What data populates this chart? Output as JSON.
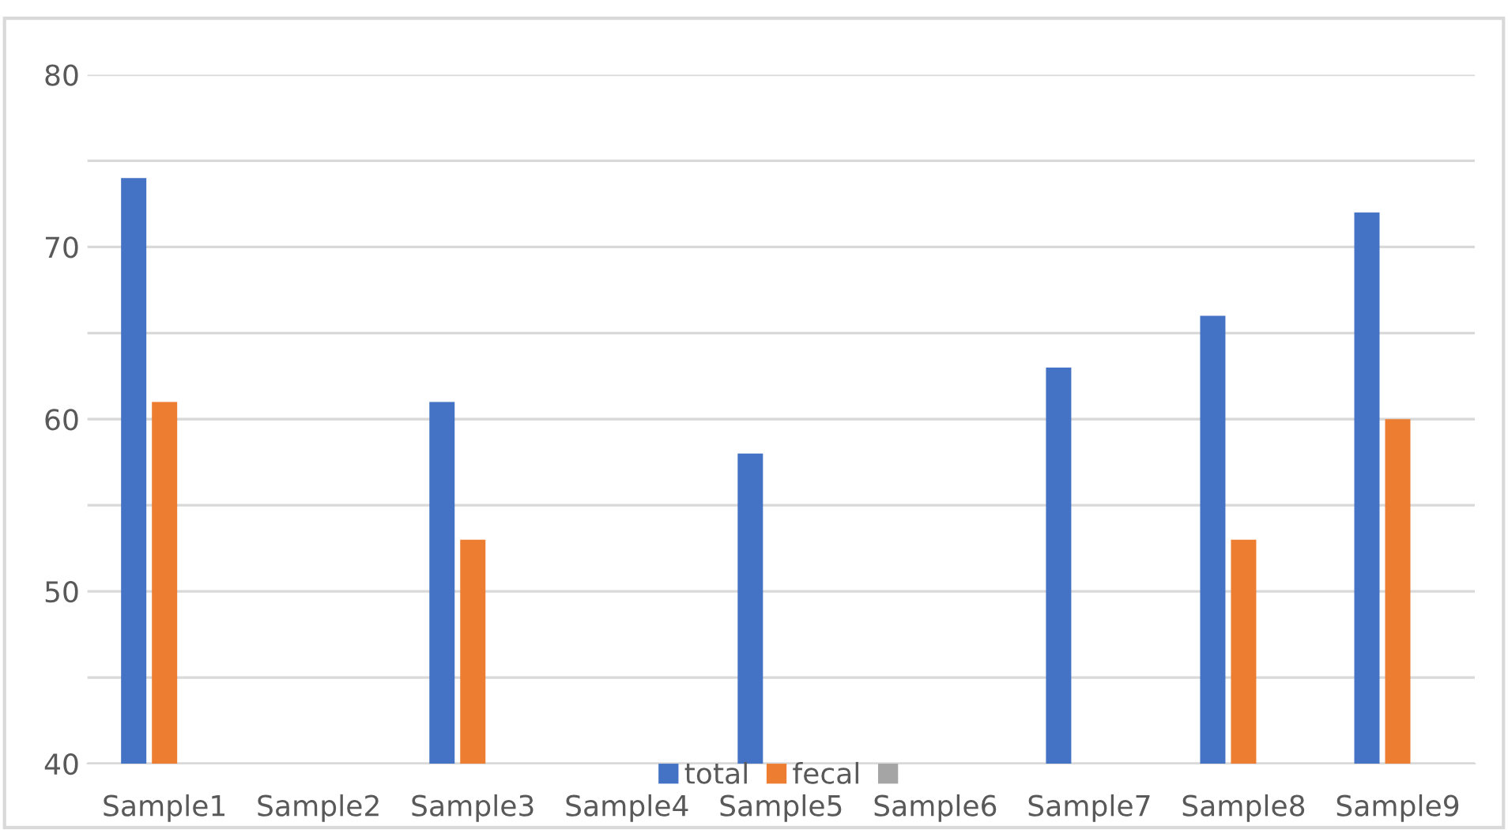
{
  "chart_data": {
    "type": "bar",
    "categories": [
      "Sample1",
      "Sample2",
      "Sample3",
      "Sample4",
      "Sample5",
      "Sample6",
      "Sample7",
      "Sample8",
      "Sample9"
    ],
    "series": [
      {
        "name": "total",
        "color": "#4472c4",
        "values": [
          74,
          null,
          61,
          null,
          58,
          null,
          63,
          66,
          72
        ]
      },
      {
        "name": "fecal",
        "color": "#ed7d31",
        "values": [
          61,
          null,
          53,
          null,
          null,
          null,
          null,
          53,
          60
        ]
      },
      {
        "color": "#a5a5a5",
        "values": [
          null,
          null,
          null,
          null,
          null,
          null,
          null,
          null,
          null
        ]
      }
    ],
    "ylim": [
      40,
      80
    ],
    "yticks": [
      40,
      {
        "value": 45,
        "label": null
      },
      50,
      {
        "value": 55,
        "label": null
      },
      60,
      {
        "value": 65,
        "label": null
      },
      70,
      {
        "value": 75,
        "label": null
      },
      80
    ],
    "grid": "y",
    "legend": "bottom"
  }
}
